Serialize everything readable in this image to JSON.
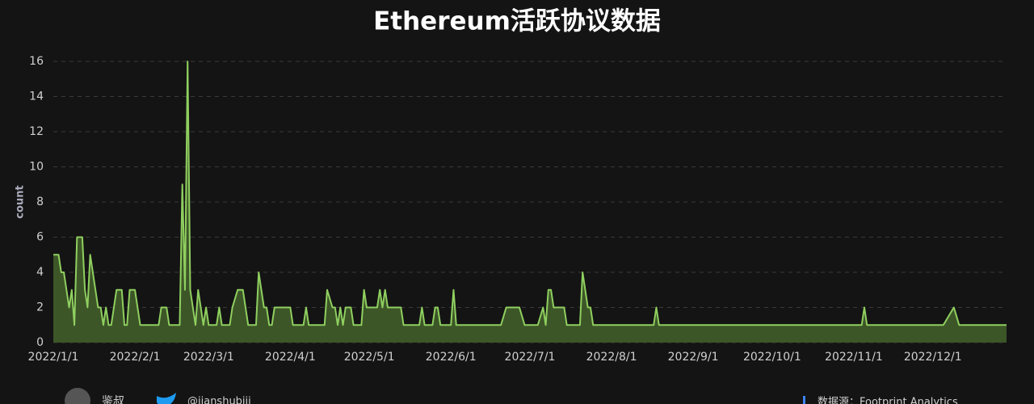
{
  "chart_data": {
    "type": "area",
    "title": "Ethereum活跃协议数据",
    "y_label": "count",
    "x": [
      "2022/1/1",
      "2022/1/3",
      "2022/1/4",
      "2022/1/5",
      "2022/1/7",
      "2022/1/8",
      "2022/1/9",
      "2022/1/10",
      "2022/1/12",
      "2022/1/13",
      "2022/1/14",
      "2022/1/15",
      "2022/1/18",
      "2022/1/19",
      "2022/1/20",
      "2022/1/21",
      "2022/1/22",
      "2022/1/23",
      "2022/1/25",
      "2022/1/27",
      "2022/1/28",
      "2022/1/29",
      "2022/1/30",
      "2022/2/1",
      "2022/2/3",
      "2022/2/10",
      "2022/2/11",
      "2022/2/13",
      "2022/2/14",
      "2022/2/18",
      "2022/2/19",
      "2022/2/20",
      "2022/2/21",
      "2022/2/22",
      "2022/2/24",
      "2022/2/25",
      "2022/2/27",
      "2022/2/28",
      "2022/3/1",
      "2022/3/4",
      "2022/3/5",
      "2022/3/6",
      "2022/3/9",
      "2022/3/10",
      "2022/3/12",
      "2022/3/14",
      "2022/3/16",
      "2022/3/19",
      "2022/3/20",
      "2022/3/22",
      "2022/3/23",
      "2022/3/24",
      "2022/3/25",
      "2022/3/26",
      "2022/4/1",
      "2022/4/2",
      "2022/4/6",
      "2022/4/7",
      "2022/4/8",
      "2022/4/14",
      "2022/4/15",
      "2022/4/17",
      "2022/4/18",
      "2022/4/19",
      "2022/4/20",
      "2022/4/21",
      "2022/4/22",
      "2022/4/24",
      "2022/4/25",
      "2022/4/28",
      "2022/4/29",
      "2022/4/30",
      "2022/5/4",
      "2022/5/5",
      "2022/5/6",
      "2022/5/7",
      "2022/5/8",
      "2022/5/13",
      "2022/5/14",
      "2022/5/20",
      "2022/5/21",
      "2022/5/22",
      "2022/5/25",
      "2022/5/26",
      "2022/5/27",
      "2022/5/28",
      "2022/6/1",
      "2022/6/2",
      "2022/6/3",
      "2022/6/20",
      "2022/6/22",
      "2022/6/27",
      "2022/6/29",
      "2022/7/4",
      "2022/7/6",
      "2022/7/7",
      "2022/7/8",
      "2022/7/9",
      "2022/7/10",
      "2022/7/14",
      "2022/7/15",
      "2022/7/20",
      "2022/7/21",
      "2022/7/23",
      "2022/7/24",
      "2022/7/25",
      "2022/8/17",
      "2022/8/18",
      "2022/8/19",
      "2022/11/4",
      "2022/11/5",
      "2022/11/6",
      "2022/12/5",
      "2022/12/9",
      "2022/12/11",
      "2022/12/29"
    ],
    "values": [
      5,
      5,
      4,
      4,
      2,
      3,
      1,
      6,
      6,
      3,
      2,
      5,
      2,
      2,
      1,
      2,
      1,
      1,
      3,
      3,
      1,
      1,
      3,
      3,
      1,
      1,
      2,
      2,
      1,
      1,
      9,
      3,
      16,
      3,
      1,
      3,
      1,
      2,
      1,
      1,
      2,
      1,
      1,
      2,
      3,
      3,
      1,
      1,
      4,
      2,
      2,
      1,
      1,
      2,
      2,
      1,
      1,
      2,
      1,
      1,
      3,
      2,
      2,
      1,
      2,
      1,
      2,
      2,
      1,
      1,
      3,
      2,
      2,
      3,
      2,
      3,
      2,
      2,
      1,
      1,
      2,
      1,
      1,
      2,
      2,
      1,
      1,
      3,
      1,
      1,
      2,
      2,
      1,
      1,
      2,
      1,
      3,
      3,
      2,
      2,
      1,
      1,
      4,
      2,
      2,
      1,
      1,
      2,
      1,
      1,
      2,
      1,
      1,
      2,
      1,
      1
    ],
    "color": "#8fcf5f",
    "fill_color": "#3d5628",
    "xlim": [
      "2022/1/1",
      "2022/12/29"
    ],
    "xticks": [
      "2022/1/1",
      "2022/2/1",
      "2022/3/1",
      "2022/4/1",
      "2022/5/1",
      "2022/6/1",
      "2022/7/1",
      "2022/8/1",
      "2022/9/1",
      "2022/10/1",
      "2022/11/1",
      "2022/12/1"
    ],
    "ylim": [
      0,
      16
    ],
    "yticks": [
      0,
      2,
      4,
      6,
      8,
      10,
      12,
      14,
      16
    ],
    "grid": true
  },
  "footer": {
    "author": "鉴叔",
    "handle": "@jianshubiji",
    "source": "数据源：Footprint Analytics"
  }
}
